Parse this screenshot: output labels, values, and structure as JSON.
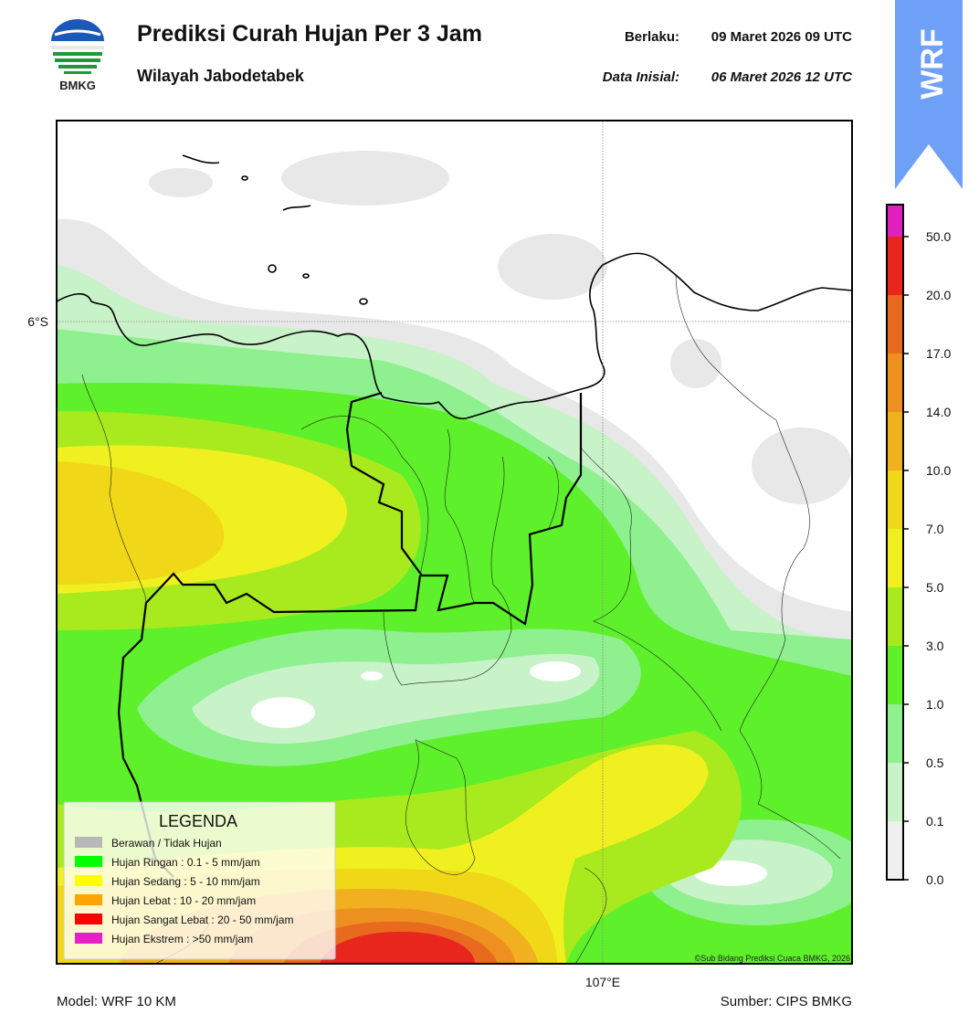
{
  "header": {
    "logo_label": "BMKG",
    "title": "Prediksi Curah Hujan Per 3 Jam",
    "subtitle": "Wilayah Jabodetabek",
    "valid_label": "Berlaku:",
    "valid_value": "09 Maret 2026 09 UTC",
    "init_label": "Data Inisial:",
    "init_value": "06 Maret 2026 12 UTC"
  },
  "badge": "WRF",
  "map": {
    "lat_label": "6°S",
    "lon_label": "107°E",
    "copyright": "©Sub Bidang Prediksi Cuaca BMKG, 2026"
  },
  "legend": {
    "title": "LEGENDA",
    "items": [
      {
        "label": "Berawan / Tidak Hujan",
        "color": "#b8b8b8"
      },
      {
        "label": "Hujan Ringan : 0.1 - 5 mm/jam",
        "color": "#00ff00"
      },
      {
        "label": "Hujan Sedang : 5 - 10 mm/jam",
        "color": "#ffff00"
      },
      {
        "label": "Hujan Lebat : 10 - 20 mm/jam",
        "color": "#ffa500"
      },
      {
        "label": "Hujan Sangat Lebat : 20 - 50 mm/jam",
        "color": "#ff0000"
      },
      {
        "label": "Hujan Ekstrem : >50 mm/jam",
        "color": "#e81ec8"
      }
    ]
  },
  "colorbar": {
    "ticks": [
      "0.0",
      "0.1",
      "0.5",
      "1.0",
      "3.0",
      "5.0",
      "7.0",
      "10.0",
      "14.0",
      "17.0",
      "20.0",
      "50.0"
    ],
    "colors": [
      "#efefef",
      "#c8f2c8",
      "#8ef08e",
      "#5ef02a",
      "#a8ea1e",
      "#f0f020",
      "#f0d818",
      "#f0b020",
      "#ee9020",
      "#e86a1e",
      "#e8261e",
      "#e020c0"
    ]
  },
  "footer": {
    "model": "Model: WRF 10 KM",
    "source": "Sumber: CIPS BMKG"
  }
}
